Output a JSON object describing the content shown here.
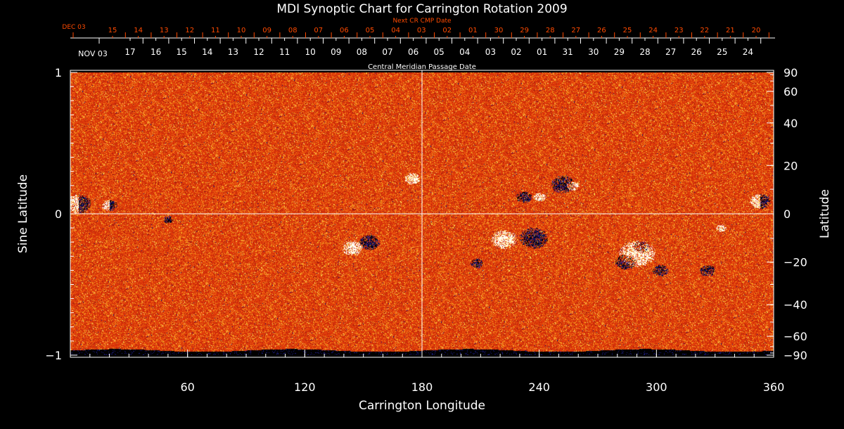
{
  "chart_data": {
    "type": "heatmap",
    "title": "MDI Synoptic Chart for Carrington Rotation 2009",
    "xlabel": "Carrington Longitude",
    "ylabel_left": "Sine Latitude",
    "ylabel_right": "Latitude",
    "xlim": [
      0,
      360
    ],
    "ylim": [
      -1,
      1
    ],
    "x_ticks": [
      60,
      120,
      180,
      240,
      300,
      360
    ],
    "y_ticks_left": [
      {
        "v": 1,
        "label": "1"
      },
      {
        "v": 0,
        "label": "0"
      },
      {
        "v": -1,
        "label": "−1"
      }
    ],
    "y_ticks_right": [
      90,
      60,
      40,
      20,
      0,
      -20,
      -40,
      -60,
      -90
    ],
    "grid_lines": {
      "longitude": 180,
      "sine_latitude": 0
    },
    "top_axis_next": {
      "title": "Next CR CMP Date",
      "start_label": "DEC 03",
      "labels": [
        "15",
        "14",
        "13",
        "12",
        "11",
        "10",
        "09",
        "08",
        "07",
        "06",
        "05",
        "04",
        "03",
        "02",
        "01",
        "30",
        "29",
        "28",
        "27",
        "26",
        "25",
        "24",
        "23",
        "22",
        "21",
        "20"
      ]
    },
    "top_axis_cmp": {
      "title": "Central Meridian Passage Date",
      "start_label": "NOV 03",
      "labels": [
        "17",
        "16",
        "15",
        "14",
        "13",
        "12",
        "11",
        "10",
        "09",
        "08",
        "07",
        "06",
        "05",
        "04",
        "03",
        "02",
        "01",
        "31",
        "30",
        "29",
        "28",
        "27",
        "26",
        "25",
        "24"
      ]
    },
    "colors": {
      "text": "#ffffff",
      "next_axis": "#ff4a00",
      "background_field": "#e8400c",
      "positive": "#ffffff",
      "negative": "#000000",
      "negative_edge": "#1a1a8c"
    },
    "active_regions": [
      {
        "lon": 4,
        "sinlat": 0.07,
        "polarity": "mixed",
        "size": 1.0
      },
      {
        "lon": 20,
        "sinlat": 0.06,
        "polarity": "mixed",
        "size": 0.6
      },
      {
        "lon": 50,
        "sinlat": -0.04,
        "polarity": "negative",
        "size": 0.4
      },
      {
        "lon": 144,
        "sinlat": -0.24,
        "polarity": "positive",
        "size": 0.8
      },
      {
        "lon": 153,
        "sinlat": -0.2,
        "polarity": "negative",
        "size": 0.8
      },
      {
        "lon": 175,
        "sinlat": 0.25,
        "polarity": "positive",
        "size": 0.6
      },
      {
        "lon": 232,
        "sinlat": 0.12,
        "polarity": "negative",
        "size": 0.6
      },
      {
        "lon": 240,
        "sinlat": 0.12,
        "polarity": "positive",
        "size": 0.5
      },
      {
        "lon": 252,
        "sinlat": 0.21,
        "polarity": "negative",
        "size": 0.9
      },
      {
        "lon": 257,
        "sinlat": 0.2,
        "polarity": "positive",
        "size": 0.5
      },
      {
        "lon": 222,
        "sinlat": -0.18,
        "polarity": "positive",
        "size": 1.0
      },
      {
        "lon": 237,
        "sinlat": -0.17,
        "polarity": "negative",
        "size": 1.1
      },
      {
        "lon": 208,
        "sinlat": -0.35,
        "polarity": "negative",
        "size": 0.5
      },
      {
        "lon": 290,
        "sinlat": -0.28,
        "polarity": "positive",
        "size": 1.4
      },
      {
        "lon": 284,
        "sinlat": -0.34,
        "polarity": "negative",
        "size": 0.8
      },
      {
        "lon": 292,
        "sinlat": -0.23,
        "polarity": "negative",
        "size": 0.6
      },
      {
        "lon": 302,
        "sinlat": -0.4,
        "polarity": "negative",
        "size": 0.6
      },
      {
        "lon": 333,
        "sinlat": -0.1,
        "polarity": "positive",
        "size": 0.4
      },
      {
        "lon": 326,
        "sinlat": -0.4,
        "polarity": "negative",
        "size": 0.6
      },
      {
        "lon": 353,
        "sinlat": 0.09,
        "polarity": "mixed",
        "size": 0.8
      }
    ]
  }
}
